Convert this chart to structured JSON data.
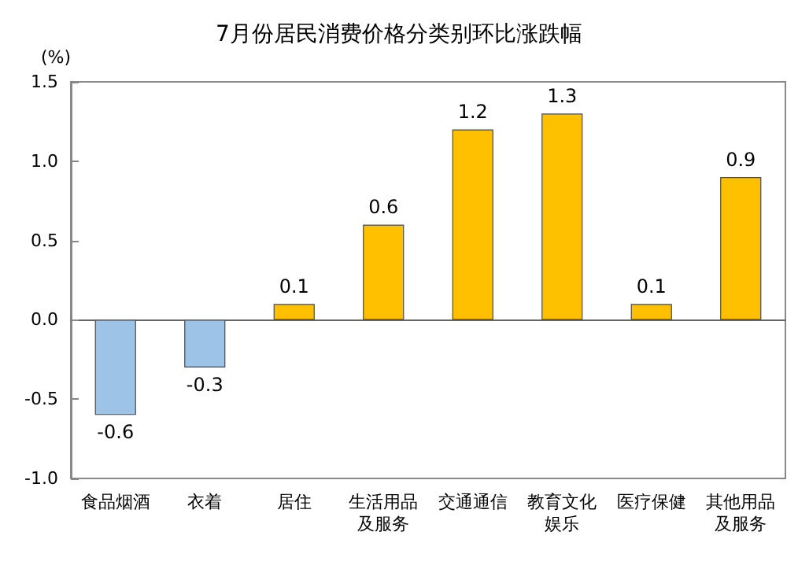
{
  "chart_data": {
    "type": "bar",
    "title": "7月份居民消费价格分类别环比涨跌幅",
    "ylabel": "(%)",
    "categories": [
      "食品烟酒",
      "衣着",
      "居住",
      "生活用品及服务",
      "交通通信",
      "教育文化娱乐",
      "医疗保健",
      "其他用品及服务"
    ],
    "values": [
      -0.6,
      -0.3,
      0.1,
      0.6,
      1.2,
      1.3,
      0.1,
      0.9
    ],
    "colors": [
      "#9dc3e6",
      "#9dc3e6",
      "#ffc000",
      "#ffc000",
      "#ffc000",
      "#ffc000",
      "#ffc000",
      "#ffc000"
    ],
    "ylim": [
      -1,
      1.5
    ],
    "yticks": [
      {
        "value": -1,
        "label": "-1.0"
      },
      {
        "value": -0.5,
        "label": "-0.5"
      },
      {
        "value": 0,
        "label": "0.0"
      },
      {
        "value": 0.5,
        "label": "0.5"
      },
      {
        "value": 1,
        "label": "1.0"
      },
      {
        "value": 1.5,
        "label": "1.5"
      }
    ],
    "data_labels": true
  }
}
